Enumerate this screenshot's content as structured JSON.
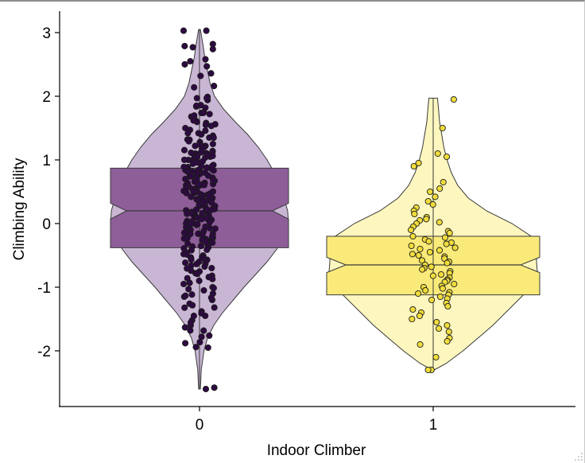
{
  "chart_data": {
    "type": "violin",
    "title": "",
    "xlabel": "Indoor Climber",
    "ylabel": "Climbing Ability",
    "categories": [
      "0",
      "1"
    ],
    "y_ticks": [
      "3",
      "2",
      "1",
      "0",
      "-1",
      "-2"
    ],
    "y_tick_values": [
      3,
      2,
      1,
      0,
      -1,
      -2
    ],
    "ylim": [
      -2.85,
      3.3
    ],
    "grid": false,
    "legend": "none",
    "colors": {
      "0": {
        "violin": "#c9b6d4",
        "box": "#8e5e99",
        "point": "#2e0a42"
      },
      "1": {
        "violin": "#fdf7bf",
        "box": "#f9ea7a",
        "point": "#f0dc3c"
      }
    },
    "violins": [
      {
        "category": "0",
        "ymin": -2.6,
        "ymax": 3.05,
        "density": [
          [
            -2.6,
            0.01
          ],
          [
            -2.3,
            0.02
          ],
          [
            -2.0,
            0.05
          ],
          [
            -1.8,
            0.09
          ],
          [
            -1.6,
            0.16
          ],
          [
            -1.4,
            0.26
          ],
          [
            -1.2,
            0.38
          ],
          [
            -1.0,
            0.5
          ],
          [
            -0.8,
            0.63
          ],
          [
            -0.6,
            0.76
          ],
          [
            -0.4,
            0.87
          ],
          [
            -0.2,
            0.95
          ],
          [
            0.0,
            1.0
          ],
          [
            0.2,
            0.99
          ],
          [
            0.4,
            0.95
          ],
          [
            0.6,
            0.9
          ],
          [
            0.8,
            0.84
          ],
          [
            1.0,
            0.76
          ],
          [
            1.2,
            0.66
          ],
          [
            1.4,
            0.54
          ],
          [
            1.6,
            0.4
          ],
          [
            1.8,
            0.27
          ],
          [
            2.0,
            0.17
          ],
          [
            2.2,
            0.12
          ],
          [
            2.4,
            0.09
          ],
          [
            2.6,
            0.06
          ],
          [
            2.8,
            0.04
          ],
          [
            3.05,
            0.01
          ]
        ],
        "box": {
          "q1": -0.38,
          "median": 0.2,
          "q3": 0.87,
          "notch_low": 0.07,
          "notch_high": 0.32
        }
      },
      {
        "category": "1",
        "ymin": -2.3,
        "ymax": 1.97,
        "density": [
          [
            -2.3,
            0.01
          ],
          [
            -2.2,
            0.12
          ],
          [
            -2.0,
            0.28
          ],
          [
            -1.8,
            0.42
          ],
          [
            -1.6,
            0.56
          ],
          [
            -1.4,
            0.68
          ],
          [
            -1.2,
            0.8
          ],
          [
            -1.0,
            0.92
          ],
          [
            -0.8,
            0.98
          ],
          [
            -0.6,
            0.97
          ],
          [
            -0.4,
            0.97
          ],
          [
            -0.2,
            0.92
          ],
          [
            0.0,
            0.74
          ],
          [
            0.2,
            0.5
          ],
          [
            0.4,
            0.33
          ],
          [
            0.6,
            0.23
          ],
          [
            0.8,
            0.17
          ],
          [
            1.0,
            0.13
          ],
          [
            1.2,
            0.1
          ],
          [
            1.4,
            0.08
          ],
          [
            1.6,
            0.06
          ],
          [
            1.8,
            0.05
          ],
          [
            1.97,
            0.04
          ]
        ],
        "box": {
          "q1": -1.12,
          "median": -0.65,
          "q3": -0.2,
          "notch_low": -0.77,
          "notch_high": -0.53
        }
      }
    ],
    "points": [
      {
        "category": "0",
        "y": [
          3.03,
          2.82,
          2.77,
          2.55,
          2.47,
          2.32,
          2.14,
          1.99,
          1.94,
          1.86,
          1.82,
          1.75,
          1.72,
          1.68,
          1.62,
          1.58,
          1.55,
          1.5,
          1.46,
          1.42,
          1.38,
          1.35,
          1.32,
          1.28,
          1.25,
          1.22,
          1.2,
          1.17,
          1.14,
          1.12,
          1.1,
          1.08,
          1.05,
          1.03,
          1.0,
          0.98,
          0.96,
          0.94,
          0.92,
          0.9,
          0.88,
          0.86,
          0.84,
          0.82,
          0.8,
          0.78,
          0.76,
          0.74,
          0.72,
          0.7,
          0.68,
          0.66,
          0.64,
          0.62,
          0.6,
          0.58,
          0.56,
          0.54,
          0.52,
          0.5,
          0.48,
          0.46,
          0.44,
          0.42,
          0.4,
          0.38,
          0.36,
          0.34,
          0.32,
          0.3,
          0.28,
          0.26,
          0.24,
          0.22,
          0.2,
          0.18,
          0.16,
          0.14,
          0.12,
          0.1,
          0.08,
          0.06,
          0.04,
          0.02,
          0.0,
          -0.02,
          -0.04,
          -0.06,
          -0.08,
          -0.1,
          -0.12,
          -0.14,
          -0.16,
          -0.18,
          -0.2,
          -0.22,
          -0.24,
          -0.26,
          -0.28,
          -0.3,
          -0.33,
          -0.36,
          -0.39,
          -0.42,
          -0.45,
          -0.48,
          -0.51,
          -0.54,
          -0.57,
          -0.6,
          -0.63,
          -0.66,
          -0.7,
          -0.74,
          -0.78,
          -0.82,
          -0.86,
          -0.9,
          -0.95,
          -1.0,
          -1.05,
          -1.1,
          -1.15,
          -1.2,
          -1.26,
          -1.32,
          -1.38,
          -1.45,
          -1.52,
          -1.6,
          -1.68,
          -1.78,
          -1.88,
          -1.95,
          -2.6
        ],
        "repeat": 2
      },
      {
        "category": "1",
        "y": [
          1.95,
          1.5,
          1.1,
          1.05,
          0.95,
          0.9,
          0.65,
          0.55,
          0.5,
          0.42,
          0.35,
          0.3,
          0.25,
          0.2,
          0.15,
          0.1,
          0.07,
          0.05,
          0.02,
          0.0,
          -0.05,
          -0.1,
          -0.12,
          -0.15,
          -0.2,
          -0.22,
          -0.25,
          -0.28,
          -0.3,
          -0.32,
          -0.35,
          -0.38,
          -0.4,
          -0.42,
          -0.45,
          -0.48,
          -0.5,
          -0.52,
          -0.55,
          -0.58,
          -0.6,
          -0.62,
          -0.65,
          -0.68,
          -0.7,
          -0.72,
          -0.75,
          -0.78,
          -0.8,
          -0.82,
          -0.85,
          -0.88,
          -0.9,
          -0.92,
          -0.95,
          -0.98,
          -1.0,
          -1.02,
          -1.05,
          -1.08,
          -1.1,
          -1.12,
          -1.15,
          -1.18,
          -1.2,
          -1.25,
          -1.3,
          -1.35,
          -1.4,
          -1.45,
          -1.5,
          -1.55,
          -1.6,
          -1.65,
          -1.7,
          -1.8,
          -1.85,
          -1.9,
          -2.1,
          -2.3,
          -2.3
        ],
        "repeat": 1
      }
    ]
  }
}
